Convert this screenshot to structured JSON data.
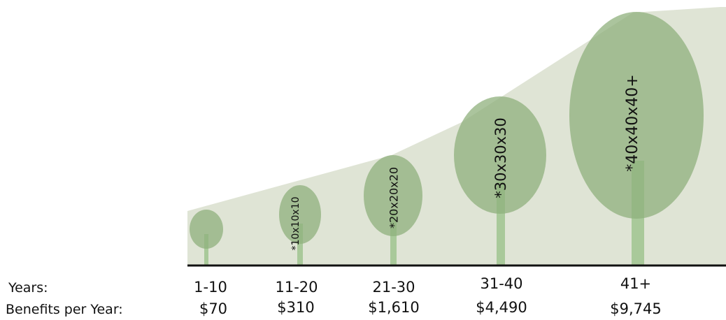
{
  "row_labels": {
    "years": "Years:",
    "benefits": "Benefits per Year:"
  },
  "columns": [
    {
      "years": "1-10",
      "benefit": "$70"
    },
    {
      "years": "11-20",
      "benefit": "$310",
      "tree_label": "*10x10x10"
    },
    {
      "years": "21-30",
      "benefit": "$1,610",
      "tree_label": "*20x20x20"
    },
    {
      "years": "31-40",
      "benefit": "$4,490",
      "tree_label": "*30x30x30"
    },
    {
      "years": "41+",
      "benefit": "$9,745",
      "tree_label": "*40x40x40+"
    }
  ]
}
